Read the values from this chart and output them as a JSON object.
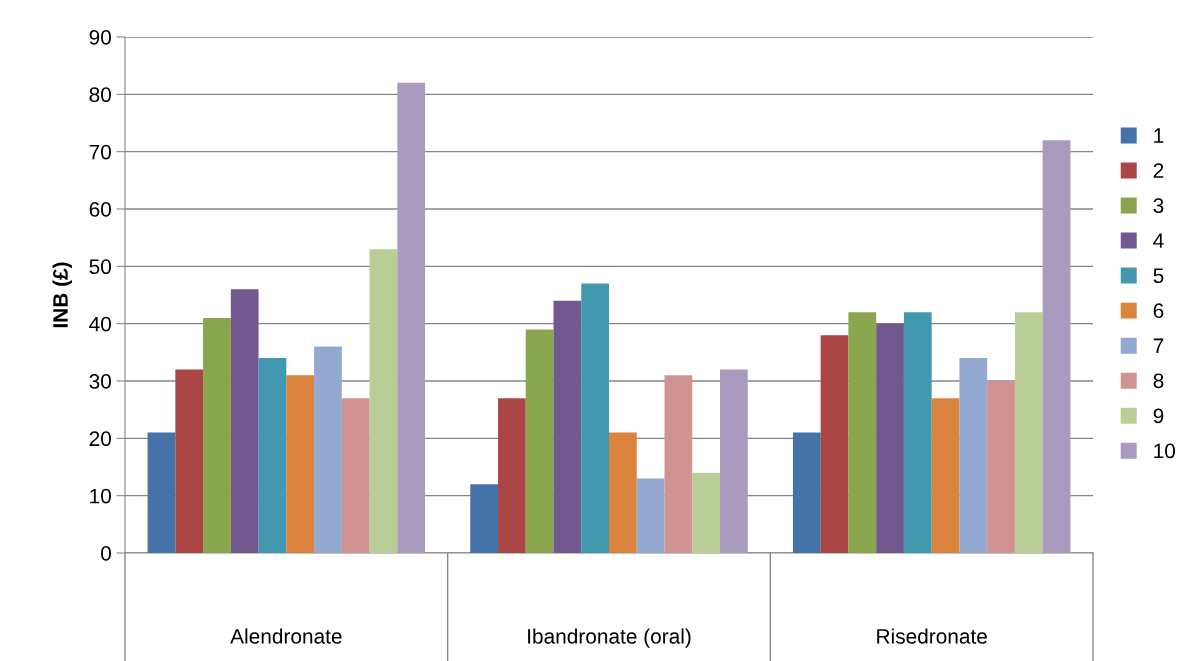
{
  "chart_data": {
    "type": "bar",
    "ylabel": "INB (£)",
    "categories": [
      "Alendronate",
      "Ibandronate (oral)",
      "Risedronate"
    ],
    "series": [
      {
        "name": "1",
        "color": "#4572a7",
        "values": [
          21,
          12,
          21
        ]
      },
      {
        "name": "2",
        "color": "#aa4643",
        "values": [
          32,
          27,
          38
        ]
      },
      {
        "name": "3",
        "color": "#89a54e",
        "values": [
          41,
          39,
          42
        ]
      },
      {
        "name": "4",
        "color": "#71588f",
        "values": [
          46,
          44,
          40
        ]
      },
      {
        "name": "5",
        "color": "#4198af",
        "values": [
          34,
          47,
          42
        ]
      },
      {
        "name": "6",
        "color": "#db843d",
        "values": [
          31,
          21,
          27
        ]
      },
      {
        "name": "7",
        "color": "#93a9cf",
        "values": [
          36,
          13,
          34
        ]
      },
      {
        "name": "8",
        "color": "#d19392",
        "values": [
          27,
          31,
          30
        ]
      },
      {
        "name": "9",
        "color": "#b9cd96",
        "values": [
          53,
          14,
          42
        ]
      },
      {
        "name": "10",
        "color": "#a99bbd",
        "values": [
          82,
          32,
          72
        ]
      }
    ],
    "ylim": [
      0,
      90
    ],
    "yticks": [
      0,
      10,
      20,
      30,
      40,
      50,
      60,
      70,
      80,
      90
    ],
    "grid": "y",
    "legend": "right"
  }
}
